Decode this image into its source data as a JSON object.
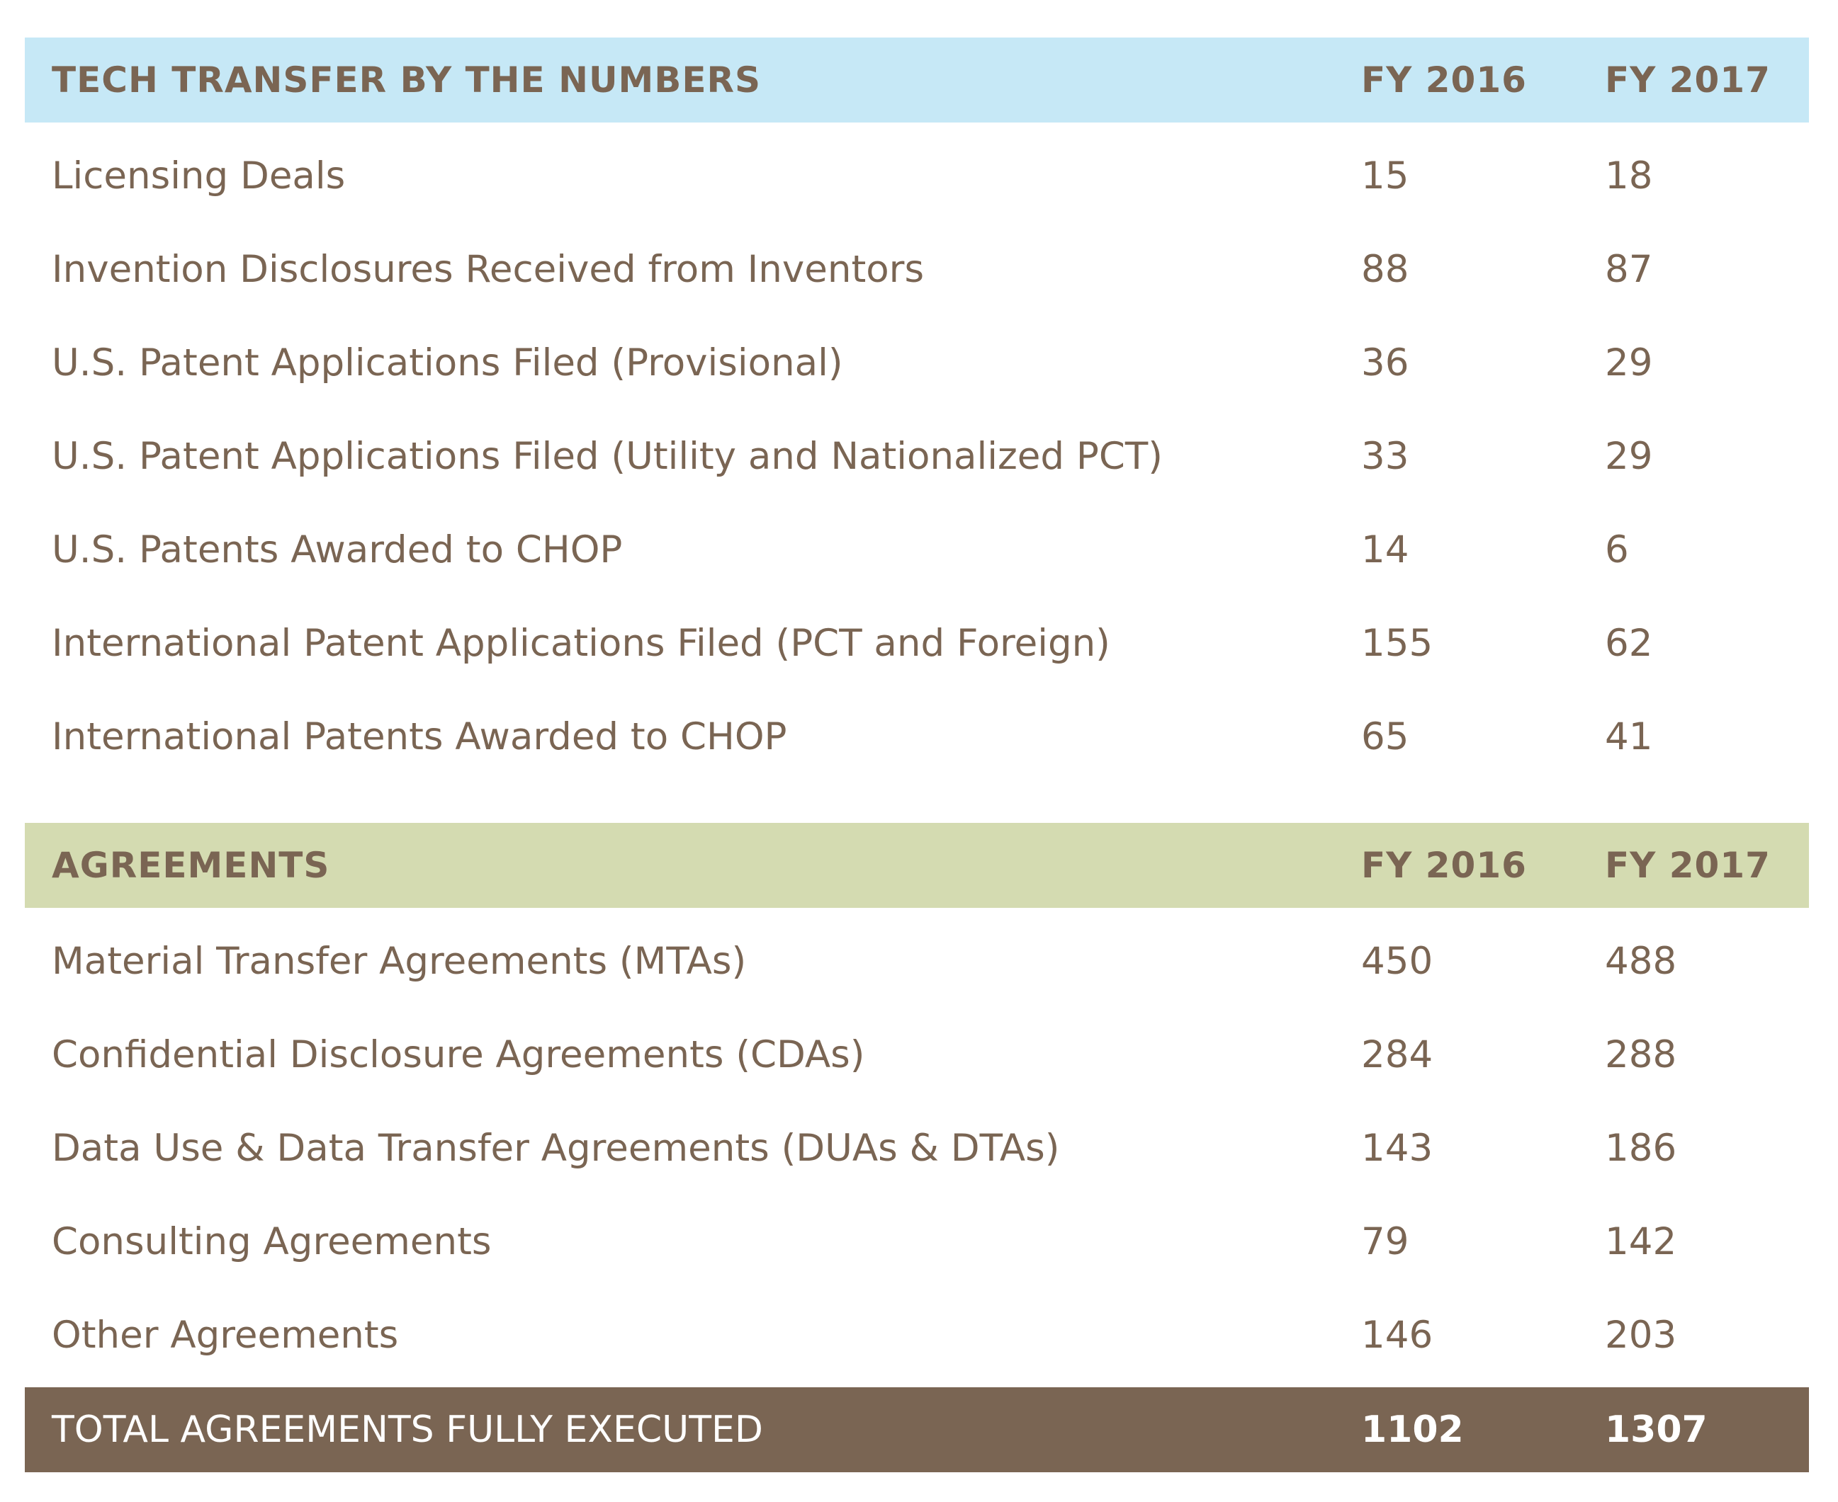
{
  "tech_transfer": {
    "title": "TECH TRANSFER BY THE NUMBERS",
    "col1": "FY 2016",
    "col2": "FY 2017",
    "rows": [
      {
        "label": "Licensing Deals",
        "fy2016": "15",
        "fy2017": "18"
      },
      {
        "label": "Invention Disclosures Received from Inventors",
        "fy2016": "88",
        "fy2017": "87"
      },
      {
        "label": "U.S. Patent Applications Filed (Provisional)",
        "fy2016": "36",
        "fy2017": "29"
      },
      {
        "label": "U.S. Patent Applications Filed (Utility and Nationalized PCT)",
        "fy2016": "33",
        "fy2017": "29"
      },
      {
        "label": "U.S. Patents Awarded to CHOP",
        "fy2016": "14",
        "fy2017": "6"
      },
      {
        "label": "International Patent Applications Filed (PCT and Foreign)",
        "fy2016": "155",
        "fy2017": "62"
      },
      {
        "label": "International Patents Awarded to CHOP",
        "fy2016": "65",
        "fy2017": "41"
      }
    ]
  },
  "agreements": {
    "title": "AGREEMENTS",
    "col1": "FY 2016",
    "col2": "FY 2017",
    "rows": [
      {
        "label": "Material Transfer Agreements (MTAs)",
        "fy2016": "450",
        "fy2017": "488"
      },
      {
        "label": "Confidential Disclosure Agreements (CDAs)",
        "fy2016": "284",
        "fy2017": "288"
      },
      {
        "label": "Data Use & Data Transfer Agreements (DUAs & DTAs)",
        "fy2016": "143",
        "fy2017": "186"
      },
      {
        "label": "Consulting Agreements",
        "fy2016": "79",
        "fy2017": "142"
      },
      {
        "label": "Other Agreements",
        "fy2016": "146",
        "fy2017": "203"
      }
    ],
    "total": {
      "label": "TOTAL AGREEMENTS FULLY EXECUTED",
      "fy2016": "1102",
      "fy2017": "1307"
    }
  },
  "colors": {
    "blue_header": "#c6e8f6",
    "green_header": "#d4dbb1",
    "brown": "#7a6553"
  }
}
